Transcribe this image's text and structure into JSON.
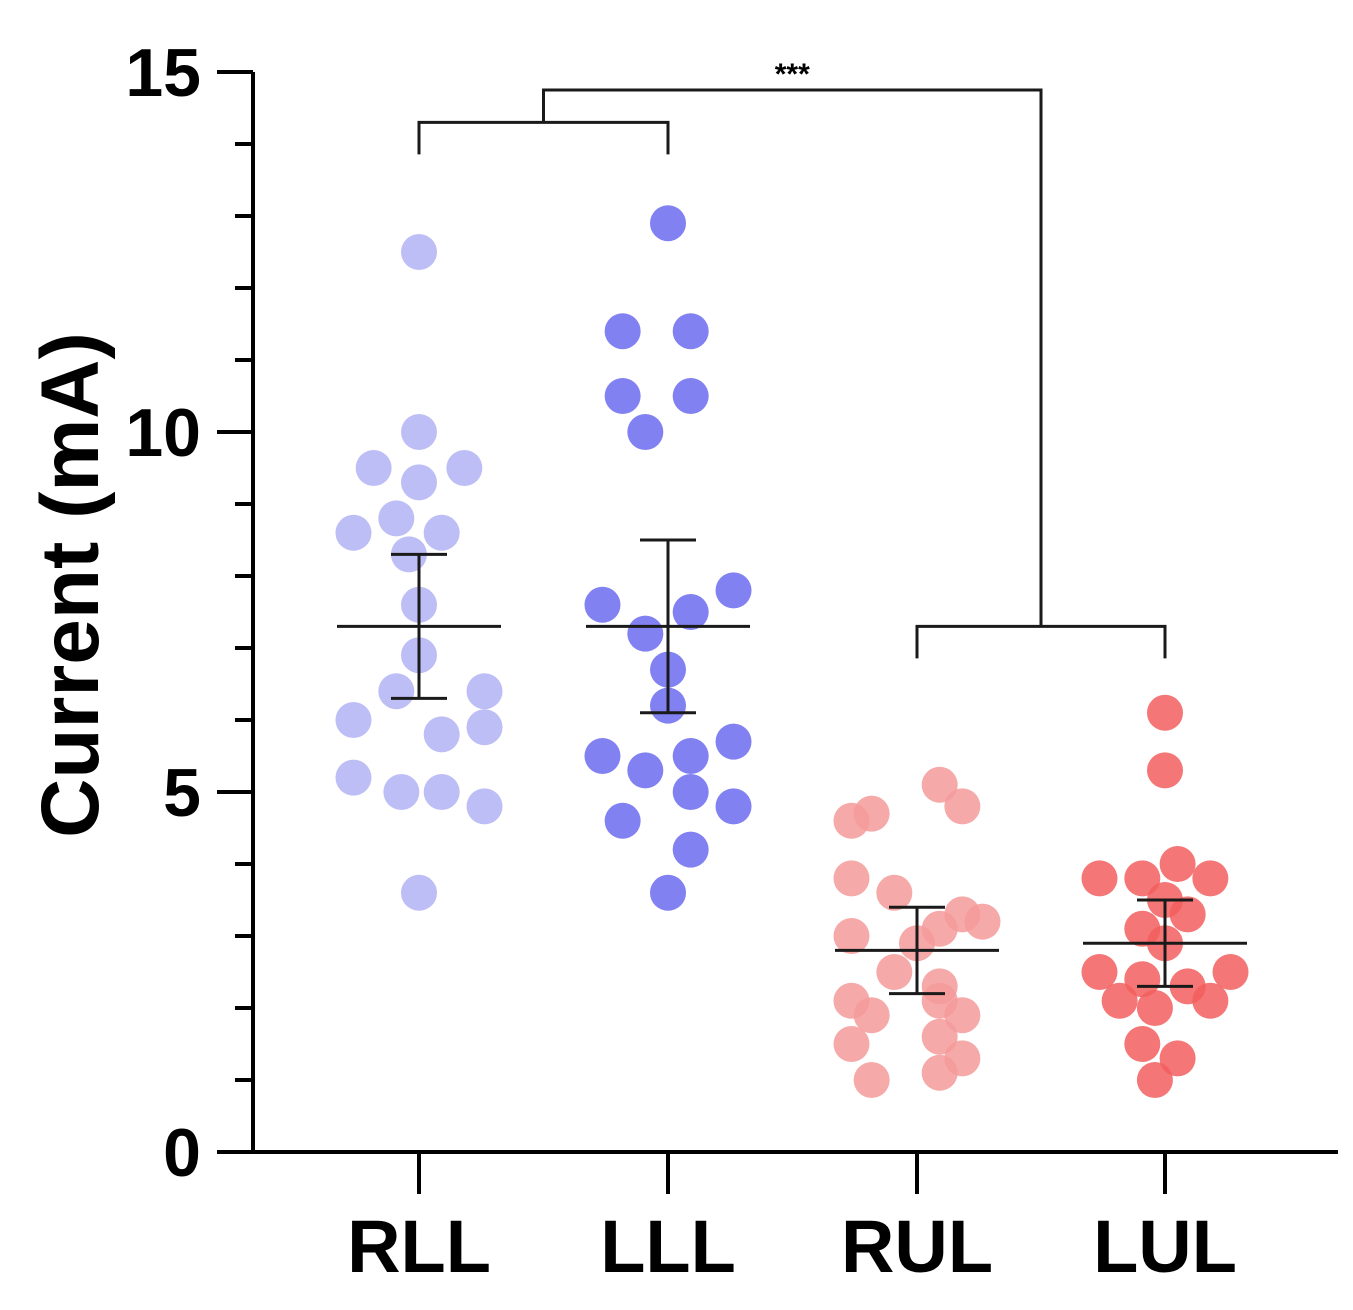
{
  "chart_data": {
    "type": "scatter",
    "ylabel": "Current (mA)",
    "xlabel": "",
    "ylim": [
      0,
      15
    ],
    "yticks_major": [
      0,
      5,
      10,
      15
    ],
    "yticks_minor": [
      1,
      2,
      3,
      4,
      6,
      7,
      8,
      9,
      11,
      12,
      13,
      14
    ],
    "categories": [
      "RLL",
      "LLL",
      "RUL",
      "LUL"
    ],
    "series": [
      {
        "category": "RLL",
        "color": "#b3b3f5",
        "mean": 7.3,
        "error": [
          6.3,
          8.3
        ],
        "points": [
          {
            "offset": 0,
            "y": 12.5
          },
          {
            "offset": 0,
            "y": 10.0
          },
          {
            "offset": -0.18,
            "y": 9.5
          },
          {
            "offset": 0.18,
            "y": 9.5
          },
          {
            "offset": 0,
            "y": 9.3
          },
          {
            "offset": -0.09,
            "y": 8.8
          },
          {
            "offset": -0.26,
            "y": 8.6
          },
          {
            "offset": 0.09,
            "y": 8.6
          },
          {
            "offset": -0.04,
            "y": 8.3
          },
          {
            "offset": 0,
            "y": 7.6
          },
          {
            "offset": 0,
            "y": 6.9
          },
          {
            "offset": -0.09,
            "y": 6.4
          },
          {
            "offset": 0.26,
            "y": 6.4
          },
          {
            "offset": -0.26,
            "y": 6.0
          },
          {
            "offset": 0.26,
            "y": 5.9
          },
          {
            "offset": 0.09,
            "y": 5.8
          },
          {
            "offset": -0.26,
            "y": 5.2
          },
          {
            "offset": -0.07,
            "y": 5.0
          },
          {
            "offset": 0.09,
            "y": 5.0
          },
          {
            "offset": 0.26,
            "y": 4.8
          },
          {
            "offset": 0,
            "y": 3.6
          }
        ]
      },
      {
        "category": "LLL",
        "color": "#6b6bf0",
        "mean": 7.3,
        "error": [
          6.1,
          8.5
        ],
        "points": [
          {
            "offset": 0,
            "y": 12.9
          },
          {
            "offset": -0.18,
            "y": 11.4
          },
          {
            "offset": 0.09,
            "y": 11.4
          },
          {
            "offset": -0.18,
            "y": 10.5
          },
          {
            "offset": 0.09,
            "y": 10.5
          },
          {
            "offset": -0.09,
            "y": 10.0
          },
          {
            "offset": 0.26,
            "y": 7.8
          },
          {
            "offset": -0.26,
            "y": 7.6
          },
          {
            "offset": 0.09,
            "y": 7.5
          },
          {
            "offset": -0.09,
            "y": 7.2
          },
          {
            "offset": 0,
            "y": 6.7
          },
          {
            "offset": 0,
            "y": 6.2
          },
          {
            "offset": 0.26,
            "y": 5.7
          },
          {
            "offset": -0.26,
            "y": 5.5
          },
          {
            "offset": 0.09,
            "y": 5.5
          },
          {
            "offset": -0.09,
            "y": 5.3
          },
          {
            "offset": 0.09,
            "y": 5.0
          },
          {
            "offset": 0.26,
            "y": 4.8
          },
          {
            "offset": -0.18,
            "y": 4.6
          },
          {
            "offset": 0.09,
            "y": 4.2
          },
          {
            "offset": 0,
            "y": 3.6
          }
        ]
      },
      {
        "category": "RUL",
        "color": "#f59a9a",
        "mean": 2.8,
        "error": [
          2.2,
          3.4
        ],
        "points": [
          {
            "offset": 0.09,
            "y": 5.1
          },
          {
            "offset": -0.18,
            "y": 4.7
          },
          {
            "offset": -0.26,
            "y": 4.6
          },
          {
            "offset": 0.18,
            "y": 4.8
          },
          {
            "offset": -0.26,
            "y": 3.8
          },
          {
            "offset": -0.09,
            "y": 3.6
          },
          {
            "offset": 0.18,
            "y": 3.3
          },
          {
            "offset": 0.26,
            "y": 3.2
          },
          {
            "offset": 0.09,
            "y": 3.1
          },
          {
            "offset": -0.26,
            "y": 3.0
          },
          {
            "offset": 0,
            "y": 2.9
          },
          {
            "offset": -0.09,
            "y": 2.5
          },
          {
            "offset": 0.09,
            "y": 2.3
          },
          {
            "offset": -0.26,
            "y": 2.1
          },
          {
            "offset": 0.09,
            "y": 2.1
          },
          {
            "offset": -0.18,
            "y": 1.9
          },
          {
            "offset": 0.18,
            "y": 1.9
          },
          {
            "offset": -0.26,
            "y": 1.5
          },
          {
            "offset": 0.09,
            "y": 1.6
          },
          {
            "offset": 0.18,
            "y": 1.3
          },
          {
            "offset": -0.18,
            "y": 1.0
          },
          {
            "offset": 0.09,
            "y": 1.1
          }
        ]
      },
      {
        "category": "LUL",
        "color": "#f25e5e",
        "mean": 2.9,
        "error": [
          2.3,
          3.5
        ],
        "points": [
          {
            "offset": 0,
            "y": 6.1
          },
          {
            "offset": 0,
            "y": 5.3
          },
          {
            "offset": 0.05,
            "y": 4.0
          },
          {
            "offset": -0.26,
            "y": 3.8
          },
          {
            "offset": -0.09,
            "y": 3.8
          },
          {
            "offset": 0.18,
            "y": 3.8
          },
          {
            "offset": 0,
            "y": 3.5
          },
          {
            "offset": 0.09,
            "y": 3.3
          },
          {
            "offset": -0.09,
            "y": 3.1
          },
          {
            "offset": 0,
            "y": 2.9
          },
          {
            "offset": -0.26,
            "y": 2.5
          },
          {
            "offset": 0.26,
            "y": 2.5
          },
          {
            "offset": -0.09,
            "y": 2.4
          },
          {
            "offset": 0.09,
            "y": 2.3
          },
          {
            "offset": -0.18,
            "y": 2.1
          },
          {
            "offset": 0.18,
            "y": 2.1
          },
          {
            "offset": -0.04,
            "y": 2.0
          },
          {
            "offset": -0.09,
            "y": 1.5
          },
          {
            "offset": 0.05,
            "y": 1.3
          },
          {
            "offset": -0.04,
            "y": 1.0
          }
        ]
      }
    ],
    "significance": {
      "label": "***",
      "left_pair": [
        "RLL",
        "LLL"
      ],
      "right_pair": [
        "RUL",
        "LUL"
      ],
      "left_bracket_y": 14.3,
      "right_bracket_y": 7.3,
      "top_y": 14.75
    },
    "grid": false,
    "legend": "none"
  }
}
